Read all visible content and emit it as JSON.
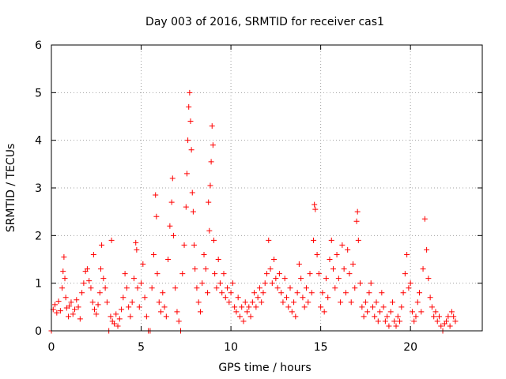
{
  "chart_data": {
    "type": "scatter",
    "title": "Day 003 of 2016, SRMTID for receiver cas1",
    "xlabel": "GPS time / hours",
    "ylabel": "SRMTID / TECUs",
    "xlim": [
      0,
      24
    ],
    "ylim": [
      0,
      6
    ],
    "xticks": [
      0,
      5,
      10,
      15,
      20
    ],
    "yticks": [
      0,
      1,
      2,
      3,
      4,
      5,
      6
    ],
    "grid": true,
    "marker": "+",
    "color": "#ff0000",
    "series": [
      {
        "name": "cas1",
        "points": [
          [
            0.0,
            0.0
          ],
          [
            0.1,
            0.45
          ],
          [
            0.2,
            0.55
          ],
          [
            0.3,
            0.38
          ],
          [
            0.4,
            0.62
          ],
          [
            0.5,
            0.42
          ],
          [
            0.6,
            0.9
          ],
          [
            0.65,
            1.25
          ],
          [
            0.7,
            1.55
          ],
          [
            0.75,
            1.1
          ],
          [
            0.8,
            0.7
          ],
          [
            0.85,
            0.48
          ],
          [
            0.95,
            0.3
          ],
          [
            1.0,
            0.52
          ],
          [
            1.1,
            0.6
          ],
          [
            1.2,
            0.35
          ],
          [
            1.3,
            0.45
          ],
          [
            1.4,
            0.65
          ],
          [
            1.5,
            0.5
          ],
          [
            1.6,
            0.25
          ],
          [
            1.7,
            0.8
          ],
          [
            1.8,
            1.0
          ],
          [
            1.9,
            1.25
          ],
          [
            2.0,
            1.3
          ],
          [
            2.1,
            1.05
          ],
          [
            2.2,
            0.9
          ],
          [
            2.3,
            0.6
          ],
          [
            2.35,
            1.6
          ],
          [
            2.4,
            0.45
          ],
          [
            2.5,
            0.35
          ],
          [
            2.6,
            0.55
          ],
          [
            2.7,
            0.8
          ],
          [
            2.75,
            1.3
          ],
          [
            2.8,
            1.8
          ],
          [
            2.9,
            1.1
          ],
          [
            3.0,
            0.9
          ],
          [
            3.1,
            0.6
          ],
          [
            3.2,
            0.0
          ],
          [
            3.3,
            0.3
          ],
          [
            3.35,
            1.9
          ],
          [
            3.4,
            0.2
          ],
          [
            3.5,
            0.15
          ],
          [
            3.6,
            0.35
          ],
          [
            3.7,
            0.1
          ],
          [
            3.8,
            0.25
          ],
          [
            3.9,
            0.45
          ],
          [
            4.0,
            0.7
          ],
          [
            4.1,
            1.2
          ],
          [
            4.2,
            0.9
          ],
          [
            4.3,
            0.5
          ],
          [
            4.4,
            0.3
          ],
          [
            4.5,
            0.6
          ],
          [
            4.6,
            1.1
          ],
          [
            4.7,
            1.85
          ],
          [
            4.75,
            1.7
          ],
          [
            4.8,
            0.9
          ],
          [
            4.9,
            0.5
          ],
          [
            5.0,
            1.0
          ],
          [
            5.1,
            1.4
          ],
          [
            5.2,
            0.7
          ],
          [
            5.3,
            0.3
          ],
          [
            5.4,
            0.0
          ],
          [
            5.5,
            0.0
          ],
          [
            5.6,
            0.9
          ],
          [
            5.7,
            1.6
          ],
          [
            5.8,
            2.85
          ],
          [
            5.85,
            2.4
          ],
          [
            5.9,
            1.2
          ],
          [
            6.0,
            0.6
          ],
          [
            6.1,
            0.4
          ],
          [
            6.2,
            0.8
          ],
          [
            6.3,
            0.5
          ],
          [
            6.4,
            0.3
          ],
          [
            6.5,
            1.5
          ],
          [
            6.6,
            2.2
          ],
          [
            6.7,
            2.7
          ],
          [
            6.75,
            3.2
          ],
          [
            6.8,
            2.0
          ],
          [
            6.9,
            0.9
          ],
          [
            7.0,
            0.4
          ],
          [
            7.1,
            0.2
          ],
          [
            7.2,
            0.0
          ],
          [
            7.3,
            1.2
          ],
          [
            7.4,
            1.8
          ],
          [
            7.5,
            2.6
          ],
          [
            7.55,
            3.3
          ],
          [
            7.6,
            4.0
          ],
          [
            7.65,
            4.7
          ],
          [
            7.7,
            5.0
          ],
          [
            7.75,
            4.4
          ],
          [
            7.8,
            3.8
          ],
          [
            7.85,
            2.9
          ],
          [
            7.9,
            2.5
          ],
          [
            7.95,
            1.8
          ],
          [
            8.0,
            1.3
          ],
          [
            8.1,
            0.9
          ],
          [
            8.2,
            0.6
          ],
          [
            8.3,
            0.4
          ],
          [
            8.4,
            1.0
          ],
          [
            8.5,
            1.6
          ],
          [
            8.6,
            1.3
          ],
          [
            8.7,
            0.8
          ],
          [
            8.75,
            2.7
          ],
          [
            8.8,
            2.1
          ],
          [
            8.85,
            3.05
          ],
          [
            8.9,
            3.55
          ],
          [
            8.95,
            4.3
          ],
          [
            9.0,
            3.9
          ],
          [
            9.05,
            1.9
          ],
          [
            9.1,
            1.2
          ],
          [
            9.2,
            0.9
          ],
          [
            9.3,
            1.5
          ],
          [
            9.4,
            1.0
          ],
          [
            9.5,
            0.8
          ],
          [
            9.6,
            1.2
          ],
          [
            9.7,
            0.7
          ],
          [
            9.8,
            0.9
          ],
          [
            9.9,
            0.6
          ],
          [
            10.0,
            0.8
          ],
          [
            10.1,
            1.0
          ],
          [
            10.2,
            0.5
          ],
          [
            10.3,
            0.4
          ],
          [
            10.4,
            0.7
          ],
          [
            10.5,
            0.3
          ],
          [
            10.6,
            0.5
          ],
          [
            10.7,
            0.2
          ],
          [
            10.8,
            0.6
          ],
          [
            10.9,
            0.4
          ],
          [
            11.0,
            0.5
          ],
          [
            11.1,
            0.3
          ],
          [
            11.2,
            0.6
          ],
          [
            11.3,
            0.8
          ],
          [
            11.4,
            0.5
          ],
          [
            11.5,
            0.7
          ],
          [
            11.6,
            0.9
          ],
          [
            11.7,
            0.6
          ],
          [
            11.8,
            0.8
          ],
          [
            11.9,
            1.0
          ],
          [
            12.0,
            1.2
          ],
          [
            12.1,
            1.9
          ],
          [
            12.2,
            1.3
          ],
          [
            12.3,
            1.0
          ],
          [
            12.4,
            1.5
          ],
          [
            12.5,
            1.1
          ],
          [
            12.6,
            0.9
          ],
          [
            12.7,
            1.2
          ],
          [
            12.8,
            0.8
          ],
          [
            12.9,
            0.6
          ],
          [
            13.0,
            1.1
          ],
          [
            13.1,
            0.7
          ],
          [
            13.2,
            0.5
          ],
          [
            13.3,
            0.9
          ],
          [
            13.4,
            0.4
          ],
          [
            13.5,
            0.6
          ],
          [
            13.6,
            0.3
          ],
          [
            13.7,
            0.8
          ],
          [
            13.8,
            1.4
          ],
          [
            13.9,
            1.1
          ],
          [
            14.0,
            0.7
          ],
          [
            14.1,
            0.5
          ],
          [
            14.2,
            0.9
          ],
          [
            14.3,
            0.6
          ],
          [
            14.4,
            1.2
          ],
          [
            14.5,
            0.8
          ],
          [
            14.6,
            1.9
          ],
          [
            14.65,
            2.65
          ],
          [
            14.7,
            2.55
          ],
          [
            14.8,
            1.6
          ],
          [
            14.9,
            1.2
          ],
          [
            15.0,
            0.5
          ],
          [
            15.1,
            0.8
          ],
          [
            15.2,
            0.4
          ],
          [
            15.3,
            1.1
          ],
          [
            15.4,
            0.7
          ],
          [
            15.5,
            1.5
          ],
          [
            15.6,
            1.9
          ],
          [
            15.7,
            1.3
          ],
          [
            15.8,
            0.9
          ],
          [
            15.9,
            1.6
          ],
          [
            16.0,
            1.1
          ],
          [
            16.1,
            0.6
          ],
          [
            16.2,
            1.8
          ],
          [
            16.3,
            1.3
          ],
          [
            16.4,
            0.8
          ],
          [
            16.5,
            1.7
          ],
          [
            16.6,
            1.2
          ],
          [
            16.7,
            0.6
          ],
          [
            16.8,
            1.4
          ],
          [
            16.9,
            0.9
          ],
          [
            17.0,
            2.3
          ],
          [
            17.05,
            2.5
          ],
          [
            17.1,
            1.9
          ],
          [
            17.2,
            1.0
          ],
          [
            17.3,
            0.5
          ],
          [
            17.4,
            0.3
          ],
          [
            17.5,
            0.6
          ],
          [
            17.6,
            0.4
          ],
          [
            17.7,
            0.8
          ],
          [
            17.8,
            1.0
          ],
          [
            17.9,
            0.5
          ],
          [
            18.0,
            0.3
          ],
          [
            18.1,
            0.6
          ],
          [
            18.2,
            0.2
          ],
          [
            18.3,
            0.4
          ],
          [
            18.4,
            0.8
          ],
          [
            18.5,
            0.5
          ],
          [
            18.6,
            0.2
          ],
          [
            18.7,
            0.3
          ],
          [
            18.8,
            0.1
          ],
          [
            18.9,
            0.4
          ],
          [
            19.0,
            0.6
          ],
          [
            19.1,
            0.2
          ],
          [
            19.2,
            0.1
          ],
          [
            19.3,
            0.3
          ],
          [
            19.4,
            0.2
          ],
          [
            19.5,
            0.5
          ],
          [
            19.6,
            0.8
          ],
          [
            19.7,
            1.2
          ],
          [
            19.8,
            1.6
          ],
          [
            19.9,
            0.9
          ],
          [
            20.0,
            1.0
          ],
          [
            20.1,
            0.4
          ],
          [
            20.2,
            0.2
          ],
          [
            20.3,
            0.3
          ],
          [
            20.4,
            0.6
          ],
          [
            20.5,
            0.8
          ],
          [
            20.6,
            0.4
          ],
          [
            20.7,
            1.3
          ],
          [
            20.8,
            2.35
          ],
          [
            20.9,
            1.7
          ],
          [
            21.0,
            1.1
          ],
          [
            21.1,
            0.7
          ],
          [
            21.2,
            0.5
          ],
          [
            21.3,
            0.3
          ],
          [
            21.4,
            0.4
          ],
          [
            21.5,
            0.2
          ],
          [
            21.6,
            0.3
          ],
          [
            21.7,
            0.1
          ],
          [
            21.8,
            0.0
          ],
          [
            21.9,
            0.15
          ],
          [
            22.0,
            0.2
          ],
          [
            22.1,
            0.3
          ],
          [
            22.2,
            0.1
          ],
          [
            22.3,
            0.4
          ],
          [
            22.4,
            0.3
          ],
          [
            22.5,
            0.2
          ]
        ]
      }
    ]
  }
}
